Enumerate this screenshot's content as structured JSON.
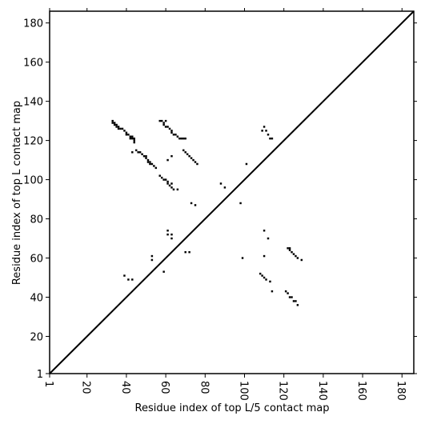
{
  "chart_data": {
    "type": "scatter",
    "xlabel": "Residue index of top L/5 contact map",
    "ylabel": "Residue index of top L contact map",
    "xlim": [
      1,
      186
    ],
    "ylim": [
      1,
      186
    ],
    "xticks": [
      1,
      20,
      40,
      60,
      80,
      100,
      120,
      140,
      160,
      180
    ],
    "yticks": [
      1,
      20,
      40,
      60,
      80,
      100,
      120,
      140,
      160,
      180
    ],
    "marker": "square",
    "series": [
      {
        "color": "#000000",
        "x": [
          33,
          34,
          35,
          36,
          37,
          38,
          39,
          40,
          41,
          42,
          43,
          44,
          44,
          45,
          46,
          47,
          48,
          49,
          50,
          51,
          52,
          53,
          54,
          55,
          43,
          33,
          34,
          35,
          36,
          40,
          42,
          43,
          44,
          50,
          51,
          52,
          57,
          58,
          59,
          60,
          59,
          60,
          61,
          62,
          63,
          63,
          64,
          65,
          66,
          67,
          68,
          69,
          70,
          69,
          70,
          71,
          72,
          73,
          74,
          75,
          76,
          61,
          63,
          57,
          58,
          59,
          60,
          61,
          61,
          62,
          63,
          63,
          64,
          66,
          73,
          75,
          88,
          90,
          101,
          98,
          61,
          61,
          63,
          63,
          53,
          53,
          59,
          70,
          72,
          39,
          41,
          43,
          110,
          109,
          111,
          112,
          113,
          114,
          99,
          110,
          112,
          110,
          122,
          123,
          124,
          125,
          126,
          127,
          129,
          123,
          108,
          109,
          110,
          111,
          113,
          114,
          121,
          122,
          123,
          124,
          125,
          126,
          127
        ],
        "y": [
          130,
          129,
          128,
          127,
          126,
          126,
          125,
          124,
          123,
          122,
          121,
          120,
          119,
          115,
          114,
          114,
          113,
          112,
          111,
          110,
          109,
          108,
          107,
          106,
          114,
          129,
          128,
          127,
          126,
          123,
          121,
          122,
          121,
          112,
          109,
          108,
          130,
          130,
          129,
          130,
          128,
          127,
          127,
          126,
          125,
          124,
          123,
          123,
          122,
          121,
          121,
          121,
          121,
          115,
          114,
          113,
          112,
          111,
          110,
          109,
          108,
          110,
          112,
          102,
          101,
          100,
          100,
          99,
          98,
          97,
          96,
          98,
          95,
          95,
          88,
          87,
          98,
          96,
          108,
          88,
          74,
          72,
          72,
          70,
          61,
          59,
          53,
          63,
          63,
          51,
          49,
          49,
          127,
          125,
          125,
          123,
          121,
          121,
          60,
          74,
          70,
          61,
          65,
          64,
          63,
          62,
          61,
          60,
          59,
          65,
          52,
          51,
          50,
          49,
          48,
          43,
          43,
          42,
          40,
          40,
          38,
          38,
          36
        ]
      }
    ]
  }
}
